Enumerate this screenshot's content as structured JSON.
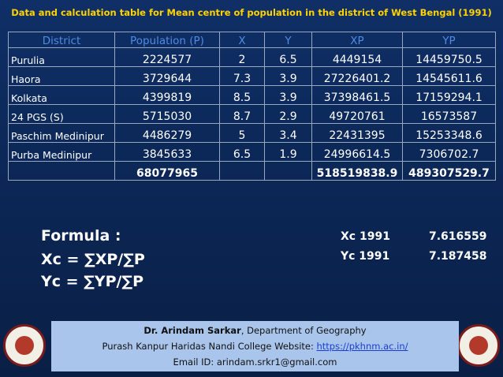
{
  "title": "Data and calculation table for Mean centre of population in the district of West Bengal (1991)",
  "table": {
    "header": [
      "District",
      "Population (P)",
      "X",
      "Y",
      "XP",
      "YP"
    ],
    "rows": [
      [
        "Purulia",
        "2224577",
        "2",
        "6.5",
        "4449154",
        "14459750.5"
      ],
      [
        "Haora",
        "3729644",
        "7.3",
        "3.9",
        "27226401.2",
        "14545611.6"
      ],
      [
        "Kolkata",
        "4399819",
        "8.5",
        "3.9",
        "37398461.5",
        "17159294.1"
      ],
      [
        "24 PGS (S)",
        "5715030",
        "8.7",
        "2.9",
        "49720761",
        "16573587"
      ],
      [
        "Paschim Medinipur",
        "4486279",
        "5",
        "3.4",
        "22431395",
        "15253348.6"
      ],
      [
        "Purba Medinipur",
        "3845633",
        "6.5",
        "1.9",
        "24996614.5",
        "7306702.7"
      ]
    ],
    "total": {
      "population": "68077965",
      "xp": "518519838.9",
      "yp": "489307529.7"
    }
  },
  "formula": {
    "heading": "Formula :",
    "xc": "Xc = ∑XP/∑P",
    "yc": "Yc = ∑YP/∑P"
  },
  "results": [
    {
      "label": "Xc 1991",
      "value": "7.616559"
    },
    {
      "label": "Yc 1991",
      "value": "7.187458"
    }
  ],
  "footer": {
    "name": "Dr. Arindam Sarkar",
    "dept": ", Department of Geography",
    "college": "Purash Kanpur Haridas Nandi College Website: ",
    "link": "https://pkhnm.ac.in/",
    "email": "Email ID: arindam.srkr1@gmail.com"
  }
}
